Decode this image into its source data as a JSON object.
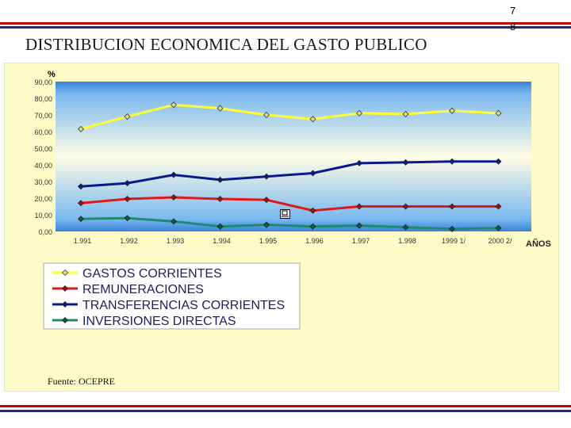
{
  "page": {
    "number": "78",
    "title": "DISTRIBUCION ECONOMICA DEL GASTO PUBLICO",
    "source": "Fuente: OCEPRE",
    "rule_colors": [
      "#c00000",
      "#1f2a7a"
    ]
  },
  "chart_data": {
    "type": "line",
    "title": "",
    "ylabel": "%",
    "xlabel": "AÑOS",
    "ylim": [
      0,
      90
    ],
    "grid": false,
    "legend_position": "bottom-left",
    "categories": [
      "1.991",
      "1.992",
      "1.993",
      "1.994",
      "1.995",
      "1.996",
      "1.997",
      "1.998",
      "1999 1/",
      "2000  2/"
    ],
    "y_ticks": [
      "0,00",
      "10,00",
      "20,00",
      "30,00",
      "40,00",
      "50,00",
      "60,00",
      "70,00",
      "80,00",
      "90,00"
    ],
    "series": [
      {
        "name": "GASTOS CORRIENTES",
        "color": "#ffff33",
        "marker_color": "#d8d8a0",
        "values": [
          61.5,
          69,
          76,
          74,
          70,
          67.5,
          71,
          70.5,
          72.5,
          71
        ]
      },
      {
        "name": "REMUNERACIONES",
        "color": "#e01818",
        "marker_color": "#a01010",
        "values": [
          17,
          19.5,
          20.5,
          19.5,
          19,
          12.5,
          15,
          15,
          15,
          15
        ]
      },
      {
        "name": "TRANSFERENCIAS CORRIENTES",
        "color": "#0a1a8c",
        "marker_color": "#0a1a8c",
        "values": [
          27,
          29,
          34,
          31,
          33,
          35,
          41,
          41.5,
          42,
          42
        ]
      },
      {
        "name": "INVERSIONES DIRECTAS",
        "color": "#1e8a70",
        "marker_color": "#115544",
        "values": [
          7.5,
          8,
          6,
          3,
          4,
          3,
          3.5,
          2.5,
          1.5,
          2
        ]
      }
    ]
  }
}
